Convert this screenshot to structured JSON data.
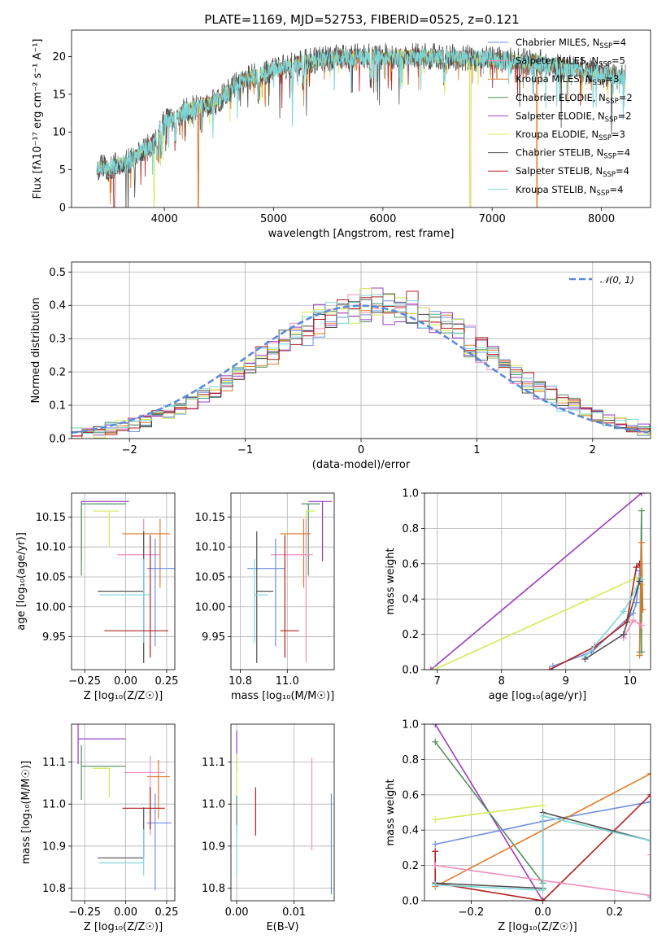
{
  "figure": {
    "title": "PLATE=1169, MJD=52753, FIBERID=0525, z=0.121"
  },
  "colors": {
    "chabrier_miles": "#6f8fe0",
    "salpeter_miles": "#f08fbf",
    "kroupa_miles": "#e07b2a",
    "chabrier_elodie": "#4f8f5f",
    "salpeter_elodie": "#9b3bbf",
    "kroupa_elodie": "#d4ea5a",
    "chabrier_stelib": "#505050",
    "salpeter_stelib": "#b22020",
    "kroupa_stelib": "#7fd6d8",
    "normal": "#5b8bd6"
  },
  "chart_data": [
    {
      "id": "spectrum",
      "type": "line",
      "xlabel": "wavelength [Angstrom, rest frame]",
      "ylabel": "Flux [fλ10⁻¹⁷ erg cm⁻² s⁻¹ A⁻¹]",
      "xlim": [
        3150,
        8450
      ],
      "ylim": [
        0,
        23.5
      ],
      "xticks": [
        "4000",
        "5000",
        "6000",
        "7000",
        "8000"
      ],
      "yticks": [
        "0",
        "5",
        "10",
        "15",
        "20"
      ],
      "grid": false,
      "legend_position": "upper right",
      "legend": [
        "Chabrier MILES, N_SSP=4",
        "Salpeter MILES, N_SSP=5",
        "Kroupa MILES, N_SSP=3",
        "Chabrier ELODIE, N_SSP=2",
        "Salpeter ELODIE, N_SSP=2",
        "Kroupa ELODIE, N_SSP=3",
        "Chabrier STELIB, N_SSP=4",
        "Salpeter STELIB, N_SSP=4",
        "Kroupa STELIB, N_SSP=4"
      ],
      "continuum": {
        "x": [
          3380,
          3500,
          3700,
          3900,
          4000,
          4200,
          4500,
          4700,
          5000,
          5300,
          5600,
          6000,
          6500,
          7000,
          7400,
          7800,
          8200
        ],
        "y": [
          5.3,
          5.2,
          6.3,
          8.5,
          11.2,
          12.8,
          14.2,
          16.8,
          18.2,
          19.3,
          19.9,
          20.0,
          20.0,
          19.6,
          19.2,
          18.3,
          17.2
        ]
      },
      "x_range": [
        3380,
        8220
      ]
    },
    {
      "id": "residuals",
      "type": "line",
      "xlabel": "(data-model)/error",
      "ylabel": "Normed distribution",
      "xlim": [
        -2.5,
        2.5
      ],
      "ylim": [
        0,
        0.53
      ],
      "xticks": [
        "−2",
        "−1",
        "0",
        "1",
        "2"
      ],
      "yticks": [
        "0.0",
        "0.1",
        "0.2",
        "0.3",
        "0.4",
        "0.5"
      ],
      "grid": true,
      "legend_position": "upper right",
      "legend": [
        "𝒩(0, 1)"
      ],
      "normal": {
        "mean": 0,
        "sigma": 1
      }
    },
    {
      "id": "age_vs_Z",
      "type": "scatter",
      "xlabel": "Z [log₁₀(Z/Z☉)]",
      "ylabel": "age  [log₁₀(age/yr)]",
      "xlim": [
        -0.33,
        0.3
      ],
      "ylim": [
        9.895,
        10.19
      ],
      "xticks": [
        "−0.25",
        "0.00",
        "0.25"
      ],
      "yticks": [
        "9.95",
        "10.00",
        "10.05",
        "10.10",
        "10.15"
      ],
      "grid": true,
      "points": [
        {
          "x": -0.27,
          "y": 10.176,
          "x_err": [
            0.0,
            0.29
          ],
          "y_err": [
            0.1,
            0.0
          ],
          "color": "salpeter_elodie"
        },
        {
          "x": -0.27,
          "y": 10.172,
          "x_err": [
            0.0,
            0.27
          ],
          "y_err": [
            0.12,
            0.0
          ],
          "color": "chabrier_elodie"
        },
        {
          "x": -0.1,
          "y": 10.16,
          "x_err": [
            0.1,
            0.06
          ],
          "y_err": [
            0.06,
            0.0
          ],
          "color": "kroupa_elodie"
        },
        {
          "x": 0.21,
          "y": 10.122,
          "x_err": [
            0.23,
            0.06
          ],
          "y_err": [
            0.09,
            0.025
          ],
          "color": "kroupa_miles"
        },
        {
          "x": 0.11,
          "y": 10.087,
          "x_err": [
            0.16,
            0.1
          ],
          "y_err": [
            0.18,
            0.06
          ],
          "color": "salpeter_miles"
        },
        {
          "x": 0.18,
          "y": 10.064,
          "x_err": [
            0.05,
            0.12
          ],
          "y_err": [
            0.13,
            0.05
          ],
          "color": "chabrier_miles"
        },
        {
          "x": 0.11,
          "y": 10.026,
          "x_err": [
            0.28,
            0.0
          ],
          "y_err": [
            0.12,
            0.1
          ],
          "color": "chabrier_stelib"
        },
        {
          "x": 0.11,
          "y": 10.02,
          "x_err": [
            0.27,
            0.04
          ],
          "y_err": [
            0.08,
            0.06
          ],
          "color": "kroupa_stelib"
        },
        {
          "x": 0.15,
          "y": 9.96,
          "x_err": [
            0.28,
            0.11
          ],
          "y_err": [
            0.045,
            0.16
          ],
          "color": "salpeter_stelib"
        }
      ]
    },
    {
      "id": "age_vs_mass",
      "type": "scatter",
      "xlabel": "mass [log₁₀(M/M☉)]",
      "ylabel": "",
      "xlim": [
        10.76,
        11.2
      ],
      "ylim": [
        9.895,
        10.19
      ],
      "xticks": [
        "10.8",
        "11.0"
      ],
      "yticks": [
        "9.95",
        "10.00",
        "10.05",
        "10.10",
        "10.15"
      ],
      "grid": true,
      "points": [
        {
          "x": 11.15,
          "y": 10.176,
          "x_err": [
            0.06,
            0.04
          ],
          "y_err": [
            0.1,
            0.0
          ],
          "color": "salpeter_elodie"
        },
        {
          "x": 11.09,
          "y": 10.172,
          "x_err": [
            0.03,
            0.05
          ],
          "y_err": [
            0.12,
            0.0
          ],
          "color": "chabrier_elodie"
        },
        {
          "x": 11.08,
          "y": 10.16,
          "x_err": [
            0.0,
            0.04
          ],
          "y_err": [
            0.06,
            0.0
          ],
          "color": "kroupa_elodie"
        },
        {
          "x": 11.07,
          "y": 10.122,
          "x_err": [
            0.1,
            0.03
          ],
          "y_err": [
            0.09,
            0.025
          ],
          "color": "kroupa_miles"
        },
        {
          "x": 11.08,
          "y": 10.087,
          "x_err": [
            0.15,
            0.03
          ],
          "y_err": [
            0.18,
            0.06
          ],
          "color": "salpeter_miles"
        },
        {
          "x": 10.95,
          "y": 10.064,
          "x_err": [
            0.12,
            0.04
          ],
          "y_err": [
            0.13,
            0.05
          ],
          "color": "chabrier_miles"
        },
        {
          "x": 10.87,
          "y": 10.026,
          "x_err": [
            0.0,
            0.07
          ],
          "y_err": [
            0.12,
            0.1
          ],
          "color": "chabrier_stelib"
        },
        {
          "x": 10.86,
          "y": 10.02,
          "x_err": [
            0.0,
            0.06
          ],
          "y_err": [
            0.08,
            0.06
          ],
          "color": "kroupa_stelib"
        },
        {
          "x": 10.99,
          "y": 9.96,
          "x_err": [
            0.02,
            0.06
          ],
          "y_err": [
            0.045,
            0.16
          ],
          "color": "salpeter_stelib"
        }
      ]
    },
    {
      "id": "mass_weight_vs_age",
      "type": "line",
      "xlabel": "age  [log₁₀(age/yr)]",
      "ylabel": "mass weight",
      "xlim": [
        6.8,
        10.32
      ],
      "ylim": [
        0,
        1.0
      ],
      "xticks": [
        "7",
        "8",
        "9",
        "10"
      ],
      "yticks": [
        "0.0",
        "0.2",
        "0.4",
        "0.6",
        "0.8",
        "1.0"
      ],
      "grid": true,
      "series": [
        {
          "color": "salpeter_elodie",
          "x": [
            6.9,
            10.18
          ],
          "y": [
            0.0,
            1.0
          ]
        },
        {
          "color": "kroupa_elodie",
          "x": [
            6.95,
            10.1,
            10.18
          ],
          "y": [
            0.0,
            0.52,
            0.48
          ]
        },
        {
          "color": "chabrier_miles",
          "x": [
            8.8,
            9.4,
            10.05,
            10.1,
            10.15
          ],
          "y": [
            0.02,
            0.1,
            0.32,
            0.38,
            0.56
          ]
        },
        {
          "color": "salpeter_stelib",
          "x": [
            8.75,
            9.45,
            9.95,
            10.1,
            10.15
          ],
          "y": [
            0.0,
            0.13,
            0.27,
            0.58,
            0.6
          ]
        },
        {
          "color": "chabrier_elodie",
          "x": [
            10.15,
            10.18,
            10.18
          ],
          "y": [
            0.1,
            0.9,
            0.1
          ]
        },
        {
          "color": "kroupa_miles",
          "x": [
            10.15,
            10.18,
            10.2
          ],
          "y": [
            0.08,
            0.72,
            0.34
          ]
        },
        {
          "color": "kroupa_stelib",
          "x": [
            9.3,
            9.9,
            10.1,
            10.18
          ],
          "y": [
            0.07,
            0.33,
            0.46,
            0.51
          ]
        },
        {
          "color": "salpeter_miles",
          "x": [
            9.9,
            10.05,
            10.18
          ],
          "y": [
            0.18,
            0.28,
            0.25
          ]
        },
        {
          "color": "chabrier_stelib",
          "x": [
            9.3,
            9.9,
            10.15
          ],
          "y": [
            0.06,
            0.2,
            0.5
          ]
        }
      ]
    },
    {
      "id": "mass_vs_Z",
      "type": "scatter",
      "xlabel": "Z [log₁₀(Z/Z☉)]",
      "ylabel": "mass [log₁₀(M/M☉)]",
      "xlim": [
        -0.33,
        0.3
      ],
      "ylim": [
        10.77,
        11.19
      ],
      "xticks": [
        "−0.25",
        "0.00",
        "0.25"
      ],
      "yticks": [
        "10.8",
        "10.9",
        "11.0",
        "11.1"
      ],
      "grid": true,
      "points": [
        {
          "x": -0.29,
          "y": 11.155,
          "x_err": [
            0.0,
            0.29
          ],
          "y_err": [
            0.06,
            0.04
          ],
          "color": "salpeter_elodie"
        },
        {
          "x": -0.27,
          "y": 11.09,
          "x_err": [
            0.0,
            0.27
          ],
          "y_err": [
            0.08,
            0.05
          ],
          "color": "chabrier_elodie"
        },
        {
          "x": -0.1,
          "y": 11.085,
          "x_err": [
            0.1,
            0.0
          ],
          "y_err": [
            0.07,
            0.0
          ],
          "color": "kroupa_elodie"
        },
        {
          "x": 0.2,
          "y": 11.065,
          "x_err": [
            0.07,
            0.07
          ],
          "y_err": [
            0.1,
            0.04
          ],
          "color": "kroupa_miles"
        },
        {
          "x": 0.15,
          "y": 11.075,
          "x_err": [
            0.16,
            0.09
          ],
          "y_err": [
            0.15,
            0.04
          ],
          "color": "salpeter_miles"
        },
        {
          "x": 0.18,
          "y": 10.955,
          "x_err": [
            0.05,
            0.1
          ],
          "y_err": [
            0.16,
            0.07
          ],
          "color": "chabrier_miles"
        },
        {
          "x": 0.11,
          "y": 10.872,
          "x_err": [
            0.28,
            0.0
          ],
          "y_err": [
            0.0,
            0.12
          ],
          "color": "chabrier_stelib"
        },
        {
          "x": 0.11,
          "y": 10.86,
          "x_err": [
            0.27,
            0.0
          ],
          "y_err": [
            0.03,
            0.08
          ],
          "color": "kroupa_stelib"
        },
        {
          "x": 0.15,
          "y": 10.99,
          "x_err": [
            0.17,
            0.09
          ],
          "y_err": [
            0.05,
            0.05
          ],
          "color": "salpeter_stelib"
        }
      ]
    },
    {
      "id": "mass_vs_ebv",
      "type": "scatter",
      "xlabel": "E(B-V)",
      "ylabel": "",
      "xlim": [
        -0.001,
        0.017
      ],
      "ylim": [
        10.77,
        11.19
      ],
      "xticks": [
        "0.00",
        "0.01"
      ],
      "yticks": [
        "10.8",
        "10.9",
        "11.0",
        "11.1"
      ],
      "grid": true,
      "points": [
        {
          "x": 0.0,
          "y": 11.155,
          "x_err": [
            0,
            0
          ],
          "y_err": [
            0.08,
            0.02
          ],
          "color": "salpeter_elodie"
        },
        {
          "x": 0.0,
          "y": 11.09,
          "x_err": [
            0,
            0
          ],
          "y_err": [
            0.07,
            0.03
          ],
          "color": "kroupa_elodie"
        },
        {
          "x": 0.0,
          "y": 11.0,
          "x_err": [
            0,
            0
          ],
          "y_err": [
            0.07,
            0.02
          ],
          "color": "chabrier_elodie"
        },
        {
          "x": 0.0,
          "y": 10.9,
          "x_err": [
            0,
            0
          ],
          "y_err": [
            0.07,
            0.05
          ],
          "color": "kroupa_stelib"
        },
        {
          "x": 0.0033,
          "y": 10.985,
          "x_err": [
            0,
            0
          ],
          "y_err": [
            0.06,
            0.055
          ],
          "color": "salpeter_stelib"
        },
        {
          "x": 0.0131,
          "y": 11.0,
          "x_err": [
            0,
            0
          ],
          "y_err": [
            0.11,
            0.11
          ],
          "color": "salpeter_miles"
        },
        {
          "x": 0.0165,
          "y": 10.905,
          "x_err": [
            0,
            0
          ],
          "y_err": [
            0.12,
            0.12
          ],
          "color": "chabrier_miles"
        }
      ]
    },
    {
      "id": "mass_weight_vs_Z",
      "type": "line",
      "xlabel": "Z [log₁₀(Z/Z☉)]",
      "ylabel": "mass weight",
      "xlim": [
        -0.33,
        0.3
      ],
      "ylim": [
        0,
        1.0
      ],
      "xticks": [
        "−0.2",
        "0.0",
        "0.2"
      ],
      "yticks": [
        "0.0",
        "0.2",
        "0.4",
        "0.6",
        "0.8",
        "1.0"
      ],
      "grid": true,
      "series": [
        {
          "color": "salpeter_elodie",
          "x": [
            -0.3,
            0.0
          ],
          "y": [
            1.0,
            0.0
          ]
        },
        {
          "color": "chabrier_elodie",
          "x": [
            -0.3,
            0.0
          ],
          "y": [
            0.9,
            0.1
          ]
        },
        {
          "color": "kroupa_elodie",
          "x": [
            -0.3,
            0.0
          ],
          "y": [
            0.46,
            0.54
          ]
        },
        {
          "color": "chabrier_miles",
          "x": [
            -0.3,
            0.0,
            0.3,
            0.3
          ],
          "y": [
            0.32,
            0.45,
            0.56,
            0.02
          ]
        },
        {
          "color": "kroupa_miles",
          "x": [
            -0.3,
            0.3
          ],
          "y": [
            0.08,
            0.72
          ]
        },
        {
          "color": "salpeter_stelib",
          "x": [
            -0.3,
            -0.3,
            0.0,
            0.3
          ],
          "y": [
            0.28,
            0.1,
            0.0,
            0.6
          ]
        },
        {
          "color": "salpeter_miles",
          "x": [
            -0.3,
            0.3,
            0.3
          ],
          "y": [
            0.2,
            0.03,
            0.26
          ]
        },
        {
          "color": "chabrier_stelib",
          "x": [
            -0.3,
            0.0,
            0.0,
            0.3
          ],
          "y": [
            0.1,
            0.07,
            0.5,
            0.34
          ]
        },
        {
          "color": "kroupa_stelib",
          "x": [
            -0.3,
            0.0,
            0.0,
            0.3
          ],
          "y": [
            0.09,
            0.06,
            0.48,
            0.34
          ]
        }
      ]
    }
  ]
}
